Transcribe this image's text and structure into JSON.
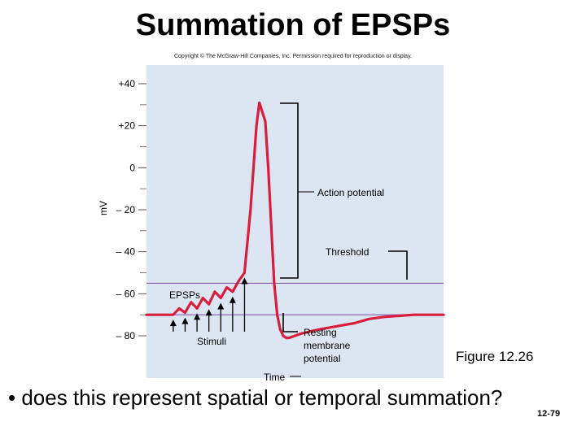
{
  "slide": {
    "title": "Summation of EPSPs",
    "copyright": "Copyright © The McGraw-Hill Companies, Inc. Permission required for reproduction or display.",
    "figure_label": "Figure 12.26",
    "bullet_text": "• does this represent spatial or temporal summation?",
    "slide_number": "12-79"
  },
  "chart_data": {
    "type": "line",
    "title": "",
    "xlabel": "Time",
    "ylabel": "mV",
    "ylim": [
      -90,
      50
    ],
    "y_ticks": [
      40,
      20,
      0,
      -20,
      -40,
      -60,
      -80
    ],
    "y_tick_labels": [
      "+40",
      "+20",
      "0",
      "– 20",
      "– 40",
      "– 60",
      "– 80"
    ],
    "x_range": [
      0,
      100
    ],
    "threshold_mv": -55,
    "resting_mv": -70,
    "colors": {
      "trace": "#d81e3c",
      "threshold_line": "#8a5cae",
      "plot_bg": "#dce6f2"
    },
    "series": [
      {
        "x": [
          0,
          9,
          11,
          13,
          15,
          17,
          19,
          21,
          23,
          25,
          27,
          29,
          31,
          33,
          35,
          37,
          38,
          40,
          41,
          42,
          43,
          44,
          45,
          46,
          47,
          48,
          50,
          52,
          55,
          58,
          62,
          66,
          70,
          75,
          80,
          85,
          90,
          95,
          100
        ],
        "values": [
          -70,
          -70,
          -67,
          -69,
          -64,
          -67,
          -62,
          -65,
          -59,
          -62,
          -57,
          -59,
          -54,
          -50,
          -20,
          20,
          31,
          22,
          0,
          -28,
          -55,
          -70,
          -77,
          -80,
          -81,
          -81,
          -80,
          -79,
          -78,
          -77,
          -76,
          -75,
          -74,
          -72,
          -71,
          -70.5,
          -70,
          -70,
          -70
        ]
      }
    ],
    "stimuli_x": [
      9,
      13,
      17,
      21,
      25,
      29,
      33
    ],
    "annotations": {
      "action_potential": "Action potential",
      "threshold": "Threshold",
      "epsps": "EPSPs",
      "stimuli": "Stimuli",
      "resting": [
        "Resting",
        "membrane",
        "potential"
      ]
    }
  }
}
